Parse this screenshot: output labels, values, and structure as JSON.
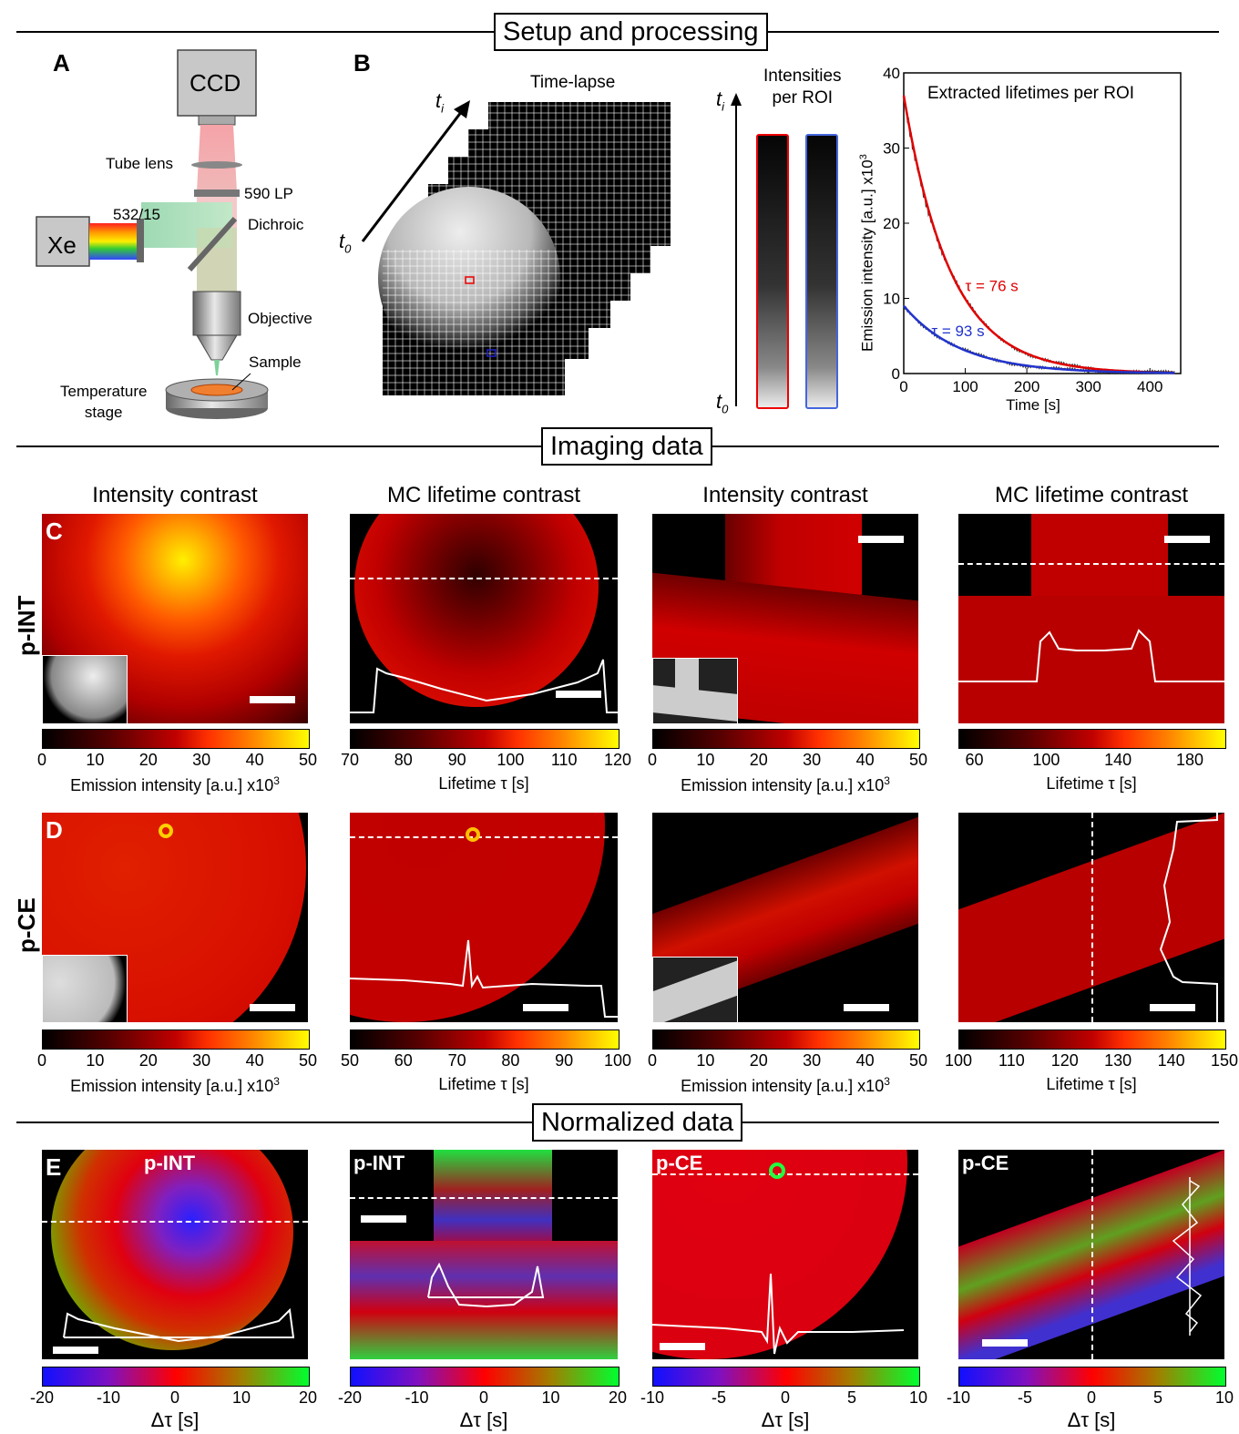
{
  "sections": {
    "setup": "Setup and processing",
    "imaging": "Imaging data",
    "normalized": "Normalized data"
  },
  "panel_labels": {
    "a": "A",
    "b": "B",
    "c": "C",
    "d": "D",
    "e": "E"
  },
  "setup": {
    "ccd": "CCD",
    "tube_lens": "Tube lens",
    "lp": "590 LP",
    "filter": "532/15",
    "xe": "Xe",
    "dichroic": "Dichroic",
    "objective": "Objective",
    "sample": "Sample",
    "stage": "Temperature\nstage"
  },
  "processing": {
    "time_lapse": "Time-lapse",
    "ti": "t",
    "ti_sub": "i",
    "t0": "t",
    "t0_sub": "0",
    "intensities": "Intensities\nper ROI"
  },
  "chart_data": {
    "type": "line",
    "title": "Extracted lifetimes per ROI",
    "xlabel": "Time [s]",
    "ylabel": "Emission intensity [a.u.] x10",
    "ylabel_sup": "3",
    "xlim": [
      0,
      450
    ],
    "ylim": [
      0,
      40
    ],
    "xticks": [
      0,
      100,
      200,
      300,
      400
    ],
    "yticks": [
      0,
      10,
      20,
      30,
      40
    ],
    "series": [
      {
        "name": "τ = 76 s",
        "color": "#e00000",
        "a": 37,
        "tau": 76
      },
      {
        "name": "τ = 93 s",
        "color": "#2233cc",
        "a": 9,
        "tau": 93
      }
    ]
  },
  "row_labels": {
    "c": "p-INT",
    "d": "p-CE"
  },
  "col_titles": [
    "Intensity contrast",
    "MC lifetime contrast",
    "Intensity contrast",
    "MC lifetime contrast"
  ],
  "colorbars": {
    "c": [
      {
        "ticks": [
          "0",
          "10",
          "20",
          "30",
          "40",
          "50"
        ],
        "label": "Emission intensity [a.u.] x10",
        "sup": "3"
      },
      {
        "ticks": [
          "70",
          "80",
          "90",
          "100",
          "110",
          "120"
        ],
        "label": "Lifetime τ  [s]",
        "sup": ""
      },
      {
        "ticks": [
          "0",
          "10",
          "20",
          "30",
          "40",
          "50"
        ],
        "label": "Emission intensity [a.u.] x10",
        "sup": "3"
      },
      {
        "ticks": [
          "60",
          "100",
          "140",
          "180"
        ],
        "label": "Lifetime τ  [s]",
        "sup": ""
      }
    ],
    "d": [
      {
        "ticks": [
          "0",
          "10",
          "20",
          "30",
          "40",
          "50"
        ],
        "label": "Emission intensity [a.u.] x10",
        "sup": "3"
      },
      {
        "ticks": [
          "50",
          "60",
          "70",
          "80",
          "90",
          "100"
        ],
        "label": "Lifetime τ  [s]",
        "sup": ""
      },
      {
        "ticks": [
          "0",
          "10",
          "20",
          "30",
          "40",
          "50"
        ],
        "label": "Emission intensity [a.u.] x10",
        "sup": "3"
      },
      {
        "ticks": [
          "100",
          "110",
          "120",
          "130",
          "140",
          "150"
        ],
        "label": "Lifetime τ  [s]",
        "sup": ""
      }
    ],
    "e": [
      {
        "ticks": [
          "-20",
          "-10",
          "0",
          "10",
          "20"
        ],
        "label": "Δτ  [s]"
      },
      {
        "ticks": [
          "-20",
          "-10",
          "0",
          "10",
          "20"
        ],
        "label": "Δτ  [s]"
      },
      {
        "ticks": [
          "-10",
          "-5",
          "0",
          "5",
          "10"
        ],
        "label": "Δτ  [s]"
      },
      {
        "ticks": [
          "-10",
          "-5",
          "0",
          "5",
          "10"
        ],
        "label": "Δτ  [s]"
      }
    ]
  },
  "e_tags": [
    "p-INT",
    "p-INT",
    "p-CE",
    "p-CE"
  ]
}
